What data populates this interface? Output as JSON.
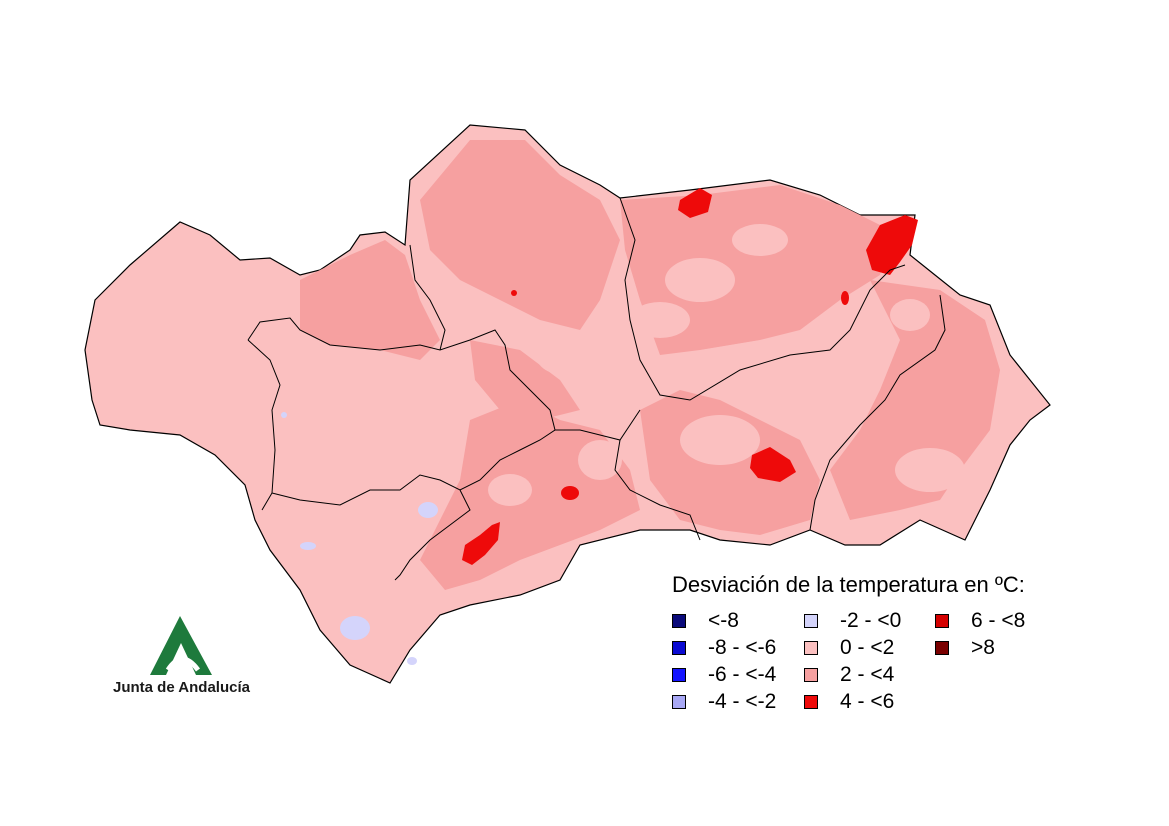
{
  "legend": {
    "title": "Desviación de la temperatura en ºC:",
    "items": [
      {
        "label": "<-8",
        "color": "#0a0a7a"
      },
      {
        "label": "-8 - <-6",
        "color": "#0a0ad2"
      },
      {
        "label": "-6 - <-4",
        "color": "#1414ff"
      },
      {
        "label": "-4 - <-2",
        "color": "#a8a8f5"
      },
      {
        "label": "-2 - <0",
        "color": "#d4d4fb"
      },
      {
        "label": "0 - <2",
        "color": "#fbc0c0"
      },
      {
        "label": "2 - <4",
        "color": "#f6a0a0"
      },
      {
        "label": "4 - <6",
        "color": "#ee0a0a"
      },
      {
        "label": "6 - <8",
        "color": "#d40000"
      },
      {
        "label": ">8",
        "color": "#7a0000"
      }
    ]
  },
  "logo": {
    "text": "Junta de Andalucía",
    "brand_color": "#1e7a3c"
  }
}
